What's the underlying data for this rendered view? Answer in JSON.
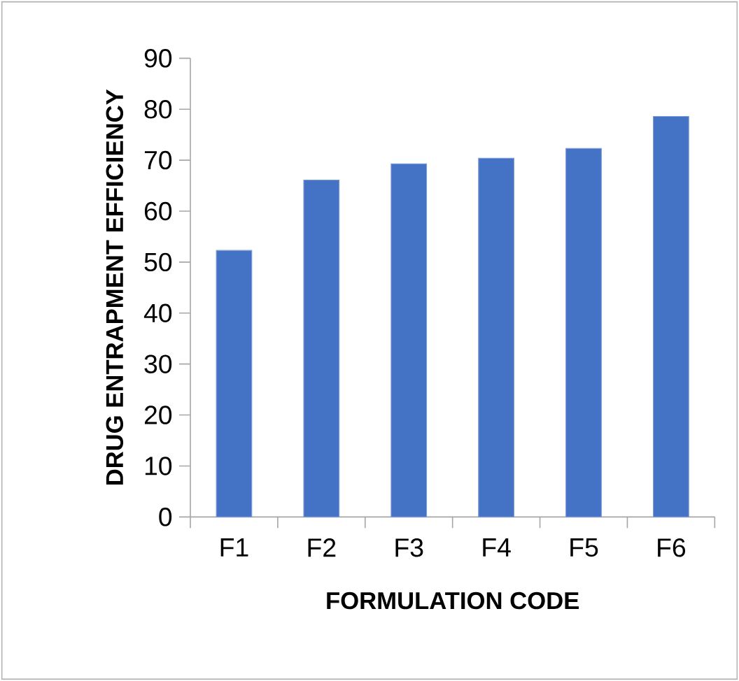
{
  "chart_data": {
    "type": "bar",
    "xlabel": "FORMULATION CODE",
    "ylabel": "DRUG ENTRAPMENT EFFICIENCY",
    "categories": [
      "F1",
      "F2",
      "F3",
      "F4",
      "F5",
      "F6"
    ],
    "values": [
      52.3,
      66.1,
      69.3,
      70.4,
      72.3,
      78.6
    ],
    "color": "#4472c4",
    "ylim": [
      0,
      90
    ],
    "yticks": [
      0,
      10,
      20,
      30,
      40,
      50,
      60,
      70,
      80,
      90
    ]
  }
}
